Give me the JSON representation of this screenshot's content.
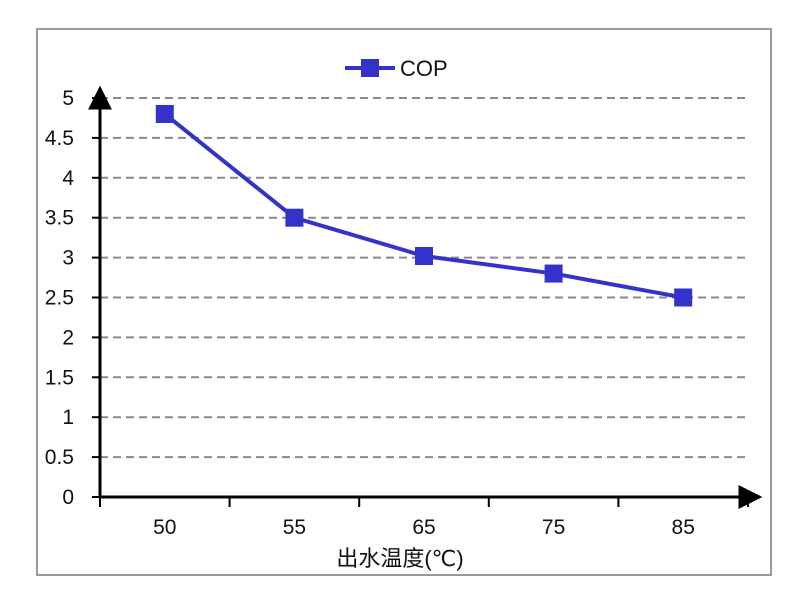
{
  "chart_data": {
    "type": "line",
    "title": "",
    "xlabel": "出水温度(℃)",
    "ylabel": "",
    "categories": [
      "50",
      "55",
      "65",
      "75",
      "85"
    ],
    "series": [
      {
        "name": "COP",
        "values": [
          4.8,
          3.5,
          3.02,
          2.8,
          2.5
        ]
      }
    ],
    "ylim": [
      0,
      5
    ],
    "yticks": [
      "0",
      "0.5",
      "1",
      "1.5",
      "2",
      "2.5",
      "3",
      "3.5",
      "4",
      "4.5",
      "5"
    ],
    "grid": true,
    "grid_style": "dashed",
    "legend": "top-center",
    "colors": {
      "series": "#3333cc",
      "grid": "#8a8a8a",
      "axis": "#000000"
    }
  }
}
